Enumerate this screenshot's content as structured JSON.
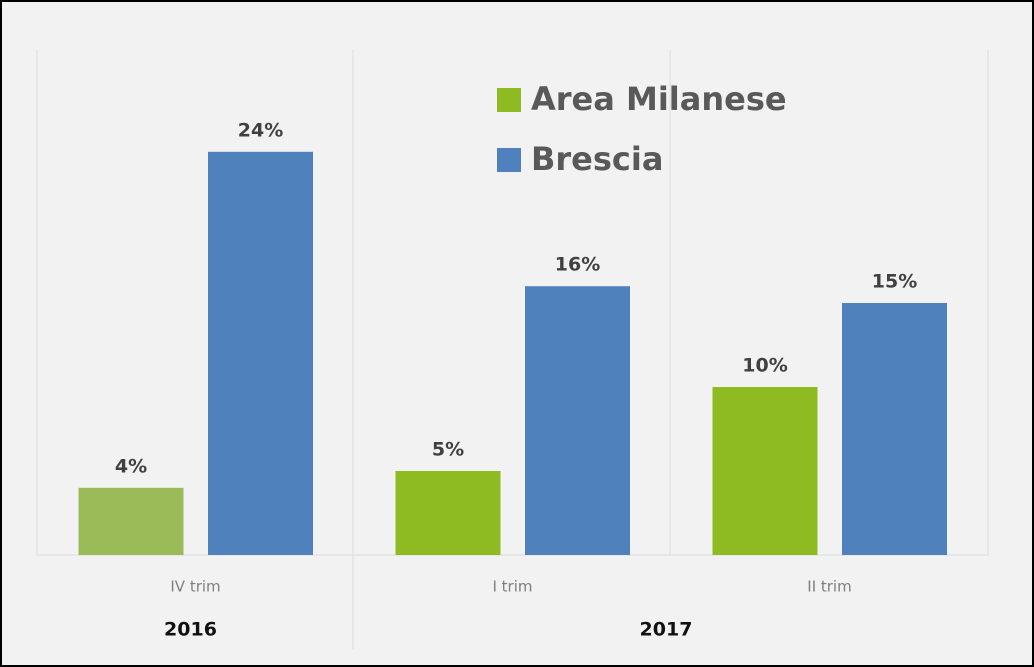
{
  "chart_data": {
    "type": "bar",
    "categories": [
      "IV trim",
      "I trim",
      "II trim"
    ],
    "groups": [
      {
        "name": "2016",
        "categories": [
          "IV trim"
        ]
      },
      {
        "name": "2017",
        "categories": [
          "I trim",
          "II trim"
        ]
      }
    ],
    "series": [
      {
        "name": "Area Milanese",
        "color": "#8dbb21",
        "colors": [
          "#9bbb59",
          "#8dbb21",
          "#8dbb21"
        ],
        "values": [
          4,
          5,
          10
        ],
        "value_labels": [
          "4%",
          "5%",
          "10%"
        ]
      },
      {
        "name": "Brescia",
        "color": "#4f81bd",
        "values": [
          24,
          16,
          15
        ],
        "value_labels": [
          "24%",
          "16%",
          "15%"
        ]
      }
    ],
    "ylim": [
      0,
      30
    ]
  }
}
